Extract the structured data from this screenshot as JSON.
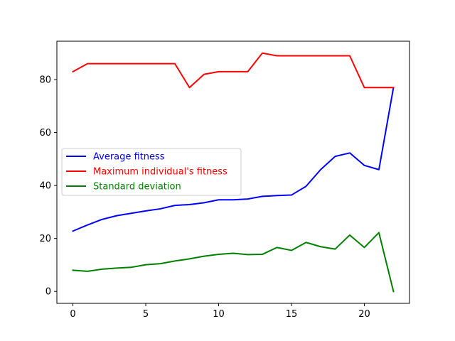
{
  "chart_data": {
    "type": "line",
    "title": "",
    "xlabel": "",
    "ylabel": "",
    "xlim": [
      -1.1,
      23.1
    ],
    "ylim": [
      -4.5,
      94.5
    ],
    "xticks": [
      0,
      5,
      10,
      15,
      20
    ],
    "yticks": [
      0,
      20,
      40,
      60,
      80
    ],
    "grid": false,
    "legend_position": "center-left",
    "x": [
      0,
      1,
      2,
      3,
      4,
      5,
      6,
      7,
      8,
      9,
      10,
      11,
      12,
      13,
      14,
      15,
      16,
      17,
      18,
      19,
      20,
      21,
      22
    ],
    "series": [
      {
        "name": "Average fitness",
        "color": "#0000ff",
        "values": [
          22.8,
          25.1,
          27.2,
          28.6,
          29.5,
          30.4,
          31.2,
          32.5,
          32.8,
          33.5,
          34.6,
          34.6,
          34.9,
          35.9,
          36.2,
          36.4,
          39.7,
          46.0,
          51.0,
          52.3,
          47.6,
          46.0,
          77.0
        ]
      },
      {
        "name": "Maximum individual's fitness",
        "color": "#ff0000",
        "values": [
          83,
          86,
          86,
          86,
          86,
          86,
          86,
          86,
          77,
          82,
          83,
          83,
          83,
          90,
          89,
          89,
          89,
          89,
          89,
          89,
          77,
          77,
          77
        ]
      },
      {
        "name": "Standard deviation",
        "color": "#008000",
        "values": [
          8.0,
          7.6,
          8.4,
          8.8,
          9.1,
          10.1,
          10.5,
          11.5,
          12.3,
          13.3,
          14.0,
          14.4,
          13.9,
          14.0,
          16.6,
          15.5,
          18.5,
          16.9,
          16.0,
          21.3,
          16.6,
          22.2,
          0.0
        ]
      }
    ]
  }
}
